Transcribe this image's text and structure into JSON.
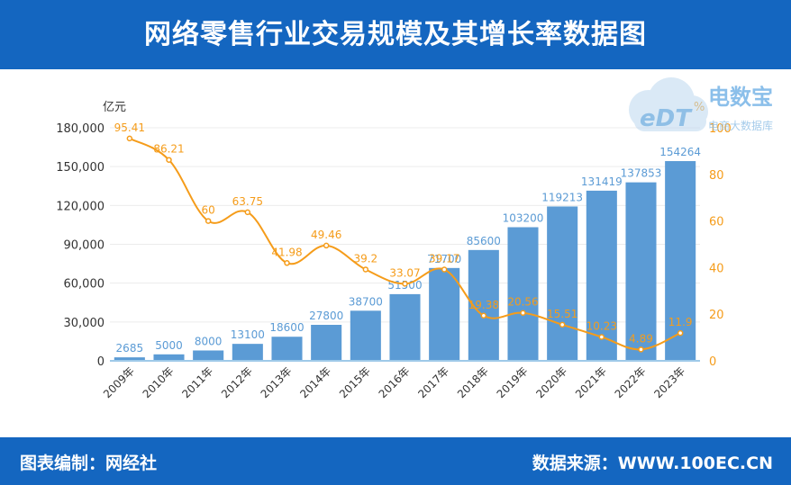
{
  "header": {
    "title": "网络零售行业交易规模及其增长率数据图"
  },
  "footer": {
    "left": "图表编制：网经社",
    "right": "数据来源：WWW.100EC.CN"
  },
  "logo": {
    "mark": "eDT",
    "name": "电数宝",
    "sub": "电商大数据库"
  },
  "colors": {
    "bar": "#5b9bd5",
    "line": "#f59c1a",
    "header": "#1466c0",
    "bar_label": "#5b9bd5"
  },
  "chart_data": {
    "type": "bar",
    "categories": [
      "2009年",
      "2010年",
      "2011年",
      "2012年",
      "2013年",
      "2014年",
      "2015年",
      "2016年",
      "2017年",
      "2018年",
      "2019年",
      "2020年",
      "2021年",
      "2022年",
      "2023年"
    ],
    "ylabel": "亿元",
    "y2label": "%",
    "ylim": [
      0,
      180000
    ],
    "y2lim": [
      0,
      100
    ],
    "yticks": [
      "0",
      "30,000",
      "60,000",
      "90,000",
      "120,000",
      "150,000",
      "180,000"
    ],
    "y2ticks": [
      "0",
      "20",
      "40",
      "60",
      "80",
      "100"
    ],
    "series": [
      {
        "type": "bar",
        "axis": "left",
        "values": [
          2685,
          5000,
          8000,
          13100,
          18600,
          27800,
          38700,
          51500,
          71700,
          85600,
          103200,
          119213,
          131419,
          137853,
          154264
        ],
        "labels": [
          "2685",
          "5000",
          "8000",
          "13100",
          "18600",
          "27800",
          "38700",
          "51500",
          "71700",
          "85600",
          "103200",
          "119213",
          "131419",
          "137853",
          "154264"
        ]
      },
      {
        "type": "line",
        "axis": "right",
        "values": [
          95.41,
          86.21,
          60,
          63.75,
          41.98,
          49.46,
          39.2,
          33.07,
          39.17,
          19.38,
          20.56,
          15.51,
          10.23,
          4.89,
          11.9
        ],
        "labels": [
          "95.41",
          "86.21",
          "60",
          "63.75",
          "41.98",
          "49.46",
          "39.2",
          "33.07",
          "39.17",
          "19.38",
          "20.56",
          "15.51",
          "10.23",
          "4.89",
          "11.9"
        ]
      }
    ]
  }
}
